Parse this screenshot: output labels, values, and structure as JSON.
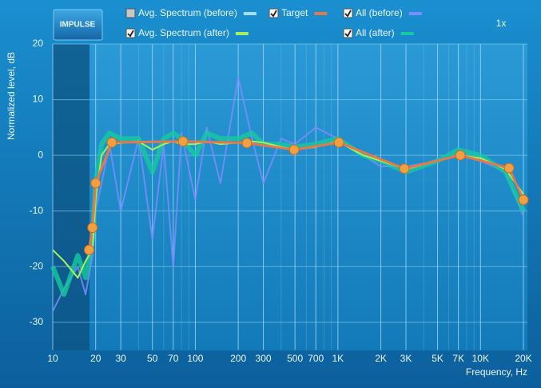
{
  "button": "IMPULSE",
  "zoom": "1x",
  "chart_data": {
    "type": "line",
    "xscale": "log",
    "xlabel": "Frequency, Hz",
    "ylabel": "Normalized level, dB",
    "xlim": [
      10,
      20000
    ],
    "ylim": [
      -35,
      20
    ],
    "xticks": [
      10,
      20,
      30,
      50,
      70,
      100,
      200,
      300,
      500,
      700,
      {
        "value": 1000,
        "label": "1K"
      },
      {
        "value": 2000,
        "label": "2K"
      },
      {
        "value": 3000,
        "label": "3K"
      },
      {
        "value": 5000,
        "label": "5K"
      },
      {
        "value": 7000,
        "label": "7K"
      },
      {
        "value": 10000,
        "label": "10K"
      },
      {
        "value": 20000,
        "label": "20K"
      }
    ],
    "yticks": [
      20,
      10,
      0,
      -10,
      -20,
      -30
    ],
    "grid": true,
    "x": [
      10,
      12,
      15,
      17,
      19,
      20,
      22,
      25,
      30,
      40,
      50,
      60,
      70,
      80,
      100,
      120,
      150,
      200,
      250,
      300,
      400,
      500,
      700,
      1000,
      1500,
      2000,
      3000,
      5000,
      7000,
      10000,
      15000,
      20000
    ],
    "series": [
      {
        "name": "Avg. Spectrum (before)",
        "color": "#a8dcef",
        "checked": false
      },
      {
        "name": "Target",
        "color": "#e4784a",
        "checked": true,
        "x": [
          18,
          19,
          20,
          26,
          82,
          230,
          493,
          1016,
          2926,
          7220,
          15850,
          20000
        ],
        "values": [
          -17,
          -13,
          -5,
          2.3,
          2.5,
          2.2,
          1,
          2.3,
          -2.4,
          0,
          -2.3,
          -8
        ]
      },
      {
        "name": "All (before)",
        "color": "#7a8cff",
        "checked": true,
        "values": [
          -28,
          -24,
          -20,
          -25,
          -18,
          -10,
          -5,
          2,
          -10,
          3,
          -15,
          2,
          -20,
          4,
          -8,
          5,
          -5,
          14,
          3,
          -5,
          3,
          2,
          5,
          3,
          0,
          -2,
          -2,
          -1,
          0,
          -1,
          -3,
          -11
        ]
      },
      {
        "name": "Avg. Spectrum (after)",
        "color": "#a6f060",
        "checked": true,
        "values": [
          -17,
          -19,
          -22,
          -19,
          -17,
          -8,
          0,
          2,
          2.2,
          2.5,
          1,
          2,
          2.5,
          2,
          2,
          2.5,
          2,
          2.3,
          2.5,
          2.3,
          1.5,
          1,
          1.5,
          2.5,
          0,
          -1,
          -2.5,
          -1,
          0,
          -0.5,
          -2.5,
          -7
        ]
      },
      {
        "name": "All (after)",
        "color": "#17c9a0",
        "checked": true,
        "values": [
          -20,
          -25,
          -18,
          -22,
          -15,
          -5,
          2,
          4,
          3,
          3,
          -3,
          3,
          4,
          3,
          0,
          4,
          3,
          3,
          4,
          2,
          2,
          1.5,
          2,
          3,
          0,
          -1,
          -3,
          -1,
          1,
          0,
          -3,
          -10
        ]
      }
    ]
  }
}
